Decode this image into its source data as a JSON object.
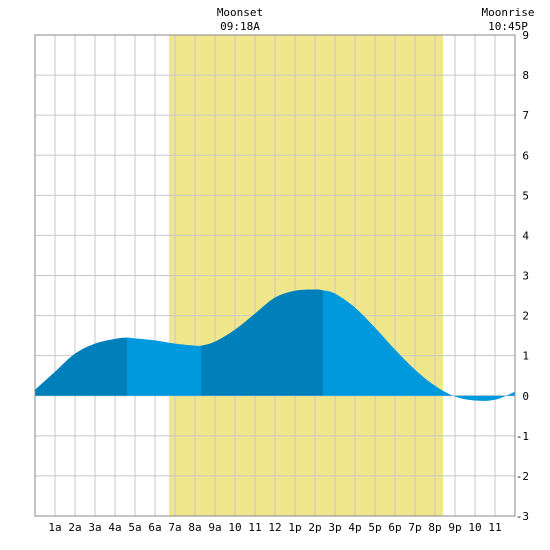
{
  "header": {
    "moonset_label": "Moonset",
    "moonset_time": "09:18A",
    "moonrise_label": "Moonrise",
    "moonrise_time": "10:45P"
  },
  "chart_data": {
    "type": "area",
    "title": "",
    "xlabel": "",
    "ylabel": "",
    "xlim": [
      0,
      24
    ],
    "ylim": [
      -3,
      9
    ],
    "yticks": [
      -3,
      -2,
      -1,
      0,
      1,
      2,
      3,
      4,
      5,
      6,
      7,
      8,
      9
    ],
    "xtick_labels": [
      "1a",
      "2a",
      "3a",
      "4a",
      "5a",
      "6a",
      "7a",
      "8a",
      "9a",
      "10",
      "11",
      "12",
      "1p",
      "2p",
      "3p",
      "4p",
      "5p",
      "6p",
      "7p",
      "8p",
      "9p",
      "10",
      "11"
    ],
    "grid": true,
    "daylight_window_hours": [
      6.7,
      20.4
    ],
    "shading_bands_hours": [
      0,
      4.6,
      8.3,
      14.4,
      24
    ],
    "series": [
      {
        "x": [
          0,
          1,
          2,
          3,
          4,
          4.6,
          5,
          6,
          7,
          8,
          8.3,
          9,
          10,
          11,
          12,
          13,
          14,
          14.4,
          15,
          16,
          17,
          18,
          19,
          20,
          21,
          22,
          23,
          24
        ],
        "y": [
          0.15,
          0.6,
          1.05,
          1.3,
          1.42,
          1.45,
          1.43,
          1.38,
          1.3,
          1.25,
          1.25,
          1.35,
          1.65,
          2.05,
          2.45,
          2.62,
          2.65,
          2.63,
          2.55,
          2.2,
          1.7,
          1.15,
          0.65,
          0.25,
          -0.02,
          -0.12,
          -0.1,
          0.1
        ]
      }
    ],
    "colors": {
      "daylight": "#f0e68c",
      "fill_light": "#0099dd",
      "fill_dark": "#0080bb",
      "grid": "#c8c8c8",
      "frame": "#888888"
    }
  }
}
